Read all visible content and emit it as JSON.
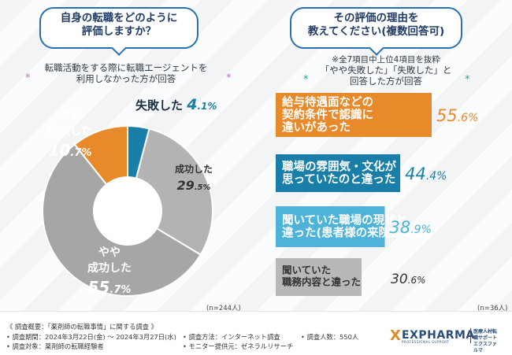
{
  "left": {
    "question": [
      "自身の転職をどのように",
      "評価しますか？"
    ],
    "note": [
      "転職活動をする際に転職エージェントを",
      "利用しなかった方が回答"
    ],
    "n_label": "(n=244人)"
  },
  "right": {
    "question": [
      "その評価の理由を",
      "教えてください(複数回答可)"
    ],
    "note_top": "※全7項目中上位4項目を抜粋",
    "note": [
      "「やや失敗した」「失敗した」と",
      "回答した方が回答"
    ],
    "n_label": "(n=36人)"
  },
  "stars": {
    "star": "*"
  },
  "chart_data": [
    {
      "type": "pie",
      "title": "自身の転職をどのように評価しますか？",
      "labels": [
        "失敗した",
        "成功した",
        "やや成功した",
        "やや失敗した"
      ],
      "label_lines": [
        [
          "失敗した"
        ],
        [
          "成功した"
        ],
        [
          "やや",
          "成功した"
        ],
        [
          "やや",
          "失敗した"
        ]
      ],
      "values": [
        4.1,
        29.5,
        55.7,
        10.7
      ],
      "display_values": [
        {
          "int": "4",
          "dec": ".1",
          "unit": "%"
        },
        {
          "int": "29",
          "dec": ".5",
          "unit": "%"
        },
        {
          "int": "55",
          "dec": ".7",
          "unit": "%"
        },
        {
          "int": "10",
          "dec": ".7",
          "unit": "%"
        }
      ],
      "colors": [
        "#1a7fa8",
        "#b3b3b3",
        "#a6a6a6",
        "#e8892a"
      ],
      "text_colors": [
        "#1a2d44",
        "#333333",
        "#ffffff",
        "#ffffff"
      ],
      "value_colors": [
        "#1a7fa8",
        "#333333",
        "#ffffff",
        "#ffffff"
      ]
    },
    {
      "type": "bar",
      "title": "その評価の理由を教えてください(複数回答可)",
      "categories": [
        [
          "給与待遇面などの",
          "契約条件で認識に",
          "違いがあった"
        ],
        [
          "職場の雰囲気・文化が",
          "思っていたのと違った"
        ],
        [
          "聞いていた職場の現状と",
          "違った(患者様の来院数など)"
        ],
        [
          "聞いていた",
          "職務内容と違った"
        ]
      ],
      "values": [
        55.6,
        44.4,
        38.9,
        30.6
      ],
      "display_values": [
        {
          "int": "55",
          "dec": ".6",
          "unit": "%"
        },
        {
          "int": "44",
          "dec": ".4",
          "unit": "%"
        },
        {
          "int": "38",
          "dec": ".9",
          "unit": "%"
        },
        {
          "int": "30",
          "dec": ".6",
          "unit": "%"
        }
      ],
      "colors": [
        "#e8892a",
        "#1a7fa8",
        "#4db3d8",
        "#b8b8b8"
      ],
      "xlim": [
        0,
        55.6
      ]
    }
  ],
  "footer": {
    "overview": "《 調査概要：「薬剤師の転職事情」に関する調査 》",
    "period": "• 調査期間：2024年3月22日(金) 〜 2024年3月27日(水)",
    "target": "• 調査対象：薬剤師の転職経験者",
    "method": "• 調査方法：インターネット調査",
    "monitor": "• モニター提供元：ゼネラルリサーチ",
    "count": "• 調査人数：550人"
  },
  "logo": {
    "x": "X",
    "name": "EXPHARMA",
    "small": "PROFESSIONAL SUPPORT",
    "desc": [
      "医療人材転職サポート",
      "エクスファルマ"
    ]
  }
}
